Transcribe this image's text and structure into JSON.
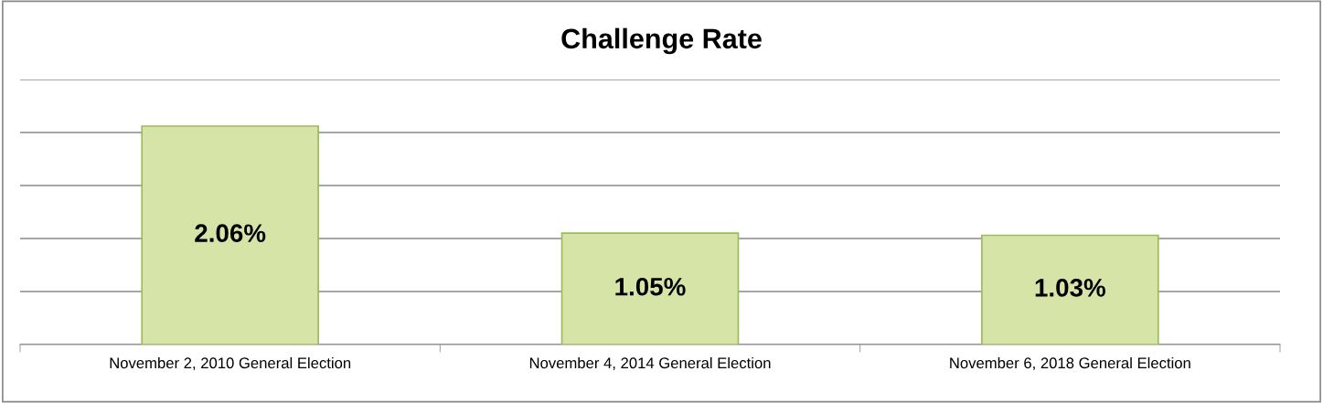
{
  "chart_data": {
    "type": "bar",
    "title": "Challenge Rate",
    "categories": [
      "November 2, 2010 General Election",
      "November 4, 2014 General Election",
      "November 6, 2018 General Election"
    ],
    "values": [
      2.06,
      1.05,
      1.03
    ],
    "value_labels": [
      "2.06%",
      "1.05%",
      "1.03%"
    ],
    "color": "#d7e4a8",
    "ylim": [
      0,
      2.5
    ],
    "yticks": [
      {
        "value": 0,
        "label": null
      },
      {
        "value": 0.5,
        "label": null
      },
      {
        "value": 1,
        "label": null
      },
      {
        "value": 1.5,
        "label": null
      },
      {
        "value": 2,
        "label": null
      },
      {
        "value": 2.5,
        "label": null
      }
    ],
    "tick_labels": "x",
    "grid": "y",
    "legend": false
  }
}
